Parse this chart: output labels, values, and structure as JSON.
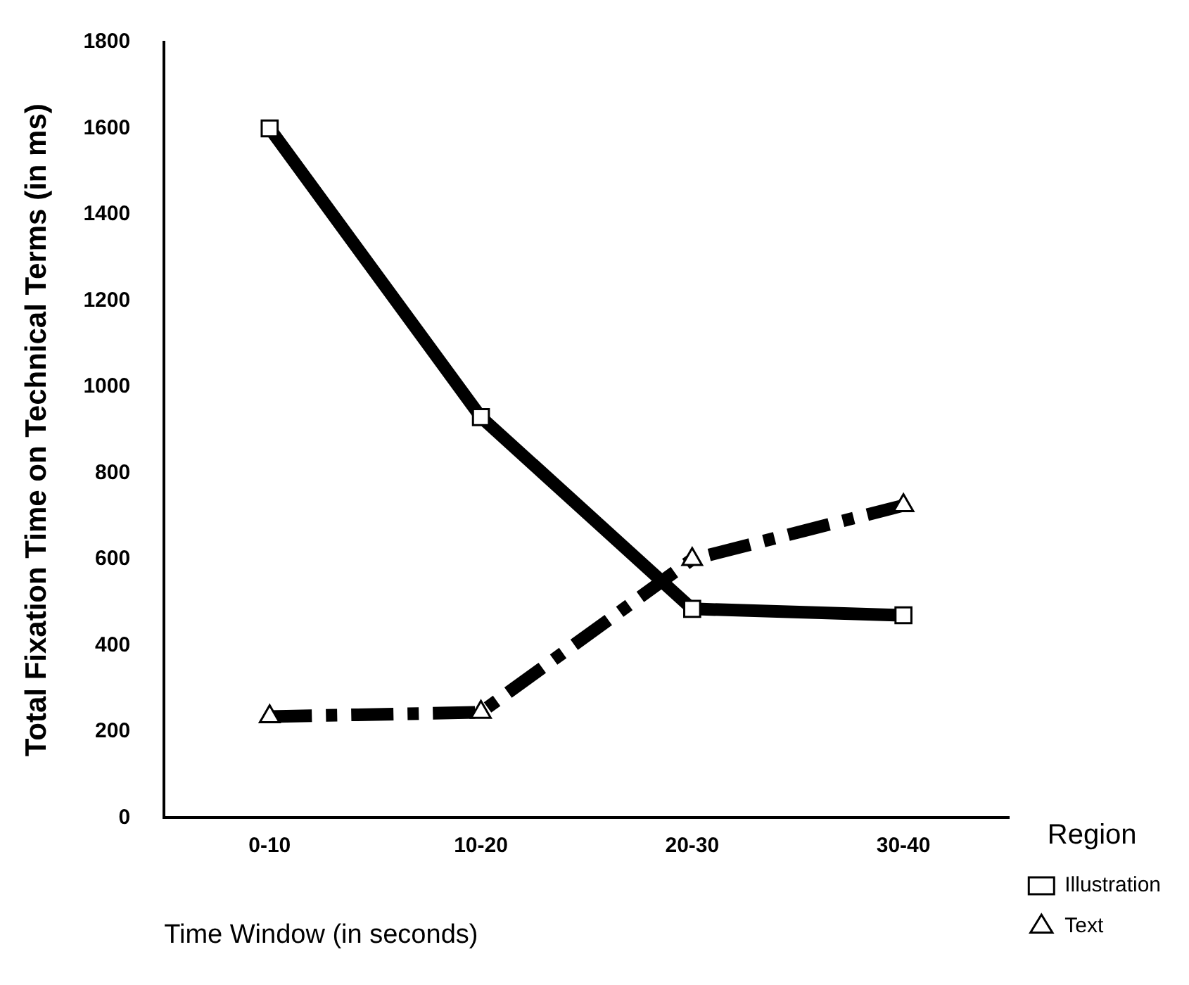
{
  "chart_data": {
    "type": "line",
    "xlabel": "Time Window (in seconds)",
    "ylabel": "Total Fixation Time on Technical Terms (in ms)",
    "legend_title": "Region",
    "legend": "right",
    "grid": false,
    "categories": [
      "0-10",
      "10-20",
      "20-30",
      "30-40"
    ],
    "ylim": [
      0,
      1800
    ],
    "yticks": [
      0,
      200,
      400,
      600,
      800,
      1000,
      1200,
      1400,
      1600,
      1800
    ],
    "series": [
      {
        "name": "Illustration",
        "color": "#000000",
        "values": [
          1600,
          930,
          485,
          470
        ],
        "marker": "square",
        "line_style": "solid"
      },
      {
        "name": "Text",
        "color": "#000000",
        "values": [
          235,
          245,
          600,
          725
        ],
        "marker": "triangle",
        "line_style": "dashed"
      }
    ]
  }
}
